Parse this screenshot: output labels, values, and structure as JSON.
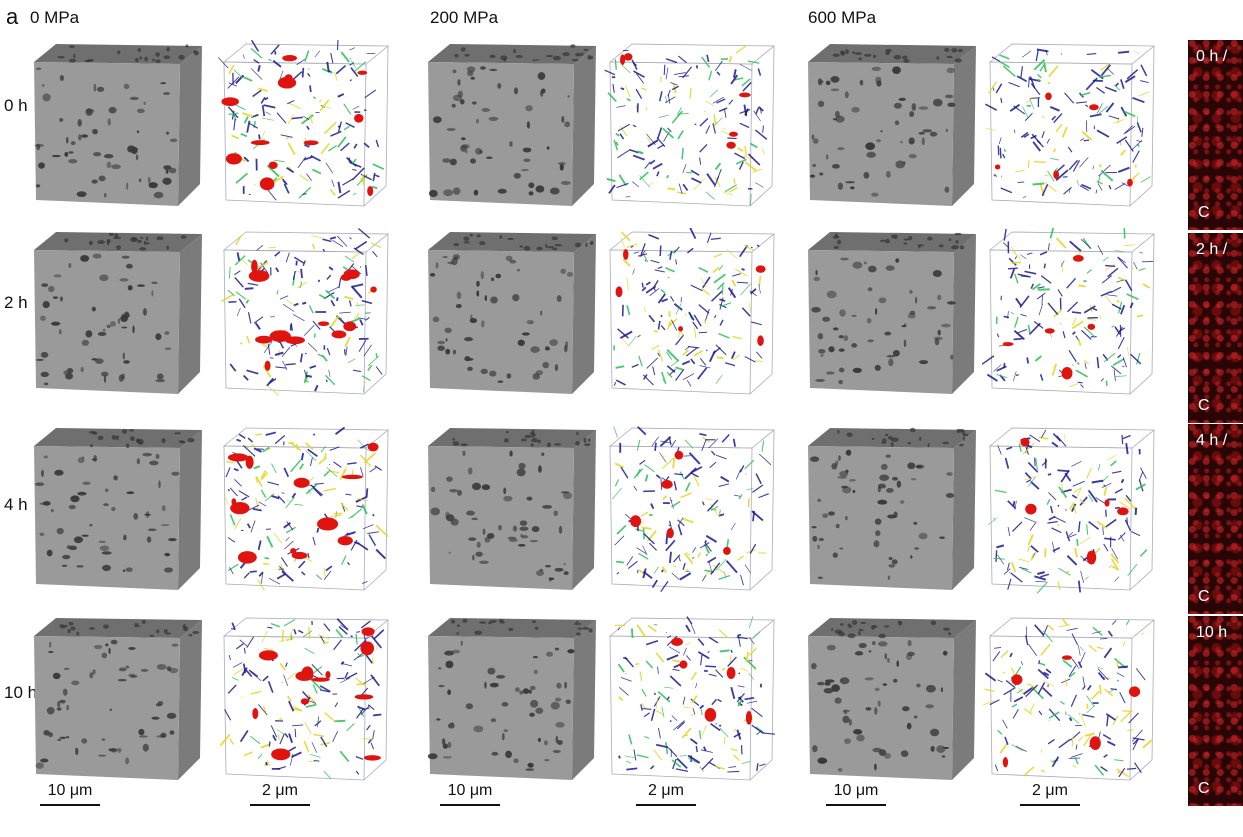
{
  "panel_letter": "a",
  "pressure_labels": [
    "0 MPa",
    "200 MPa",
    "600 MPa"
  ],
  "time_labels": [
    "0 h",
    "2 h",
    "4 h",
    "10 h"
  ],
  "scale_bars": [
    "10 μm",
    "2 μm",
    "10 μm",
    "2 μm",
    "10 μm",
    "2 μm"
  ],
  "confocal_labels": [
    {
      "top": "0 h /",
      "bottom": "C"
    },
    {
      "top": "2 h /",
      "bottom": "C"
    },
    {
      "top": "4 h /",
      "bottom": "C"
    },
    {
      "top": "10 h",
      "bottom": "C"
    }
  ],
  "colors": {
    "sem_gray": "#9a9a9a",
    "network_blue": "#1a1a8c",
    "network_green": "#2fbf5a",
    "network_yellow": "#e6d51e",
    "pore_red": "#e0140f",
    "confocal_bg": "#2a0506"
  }
}
